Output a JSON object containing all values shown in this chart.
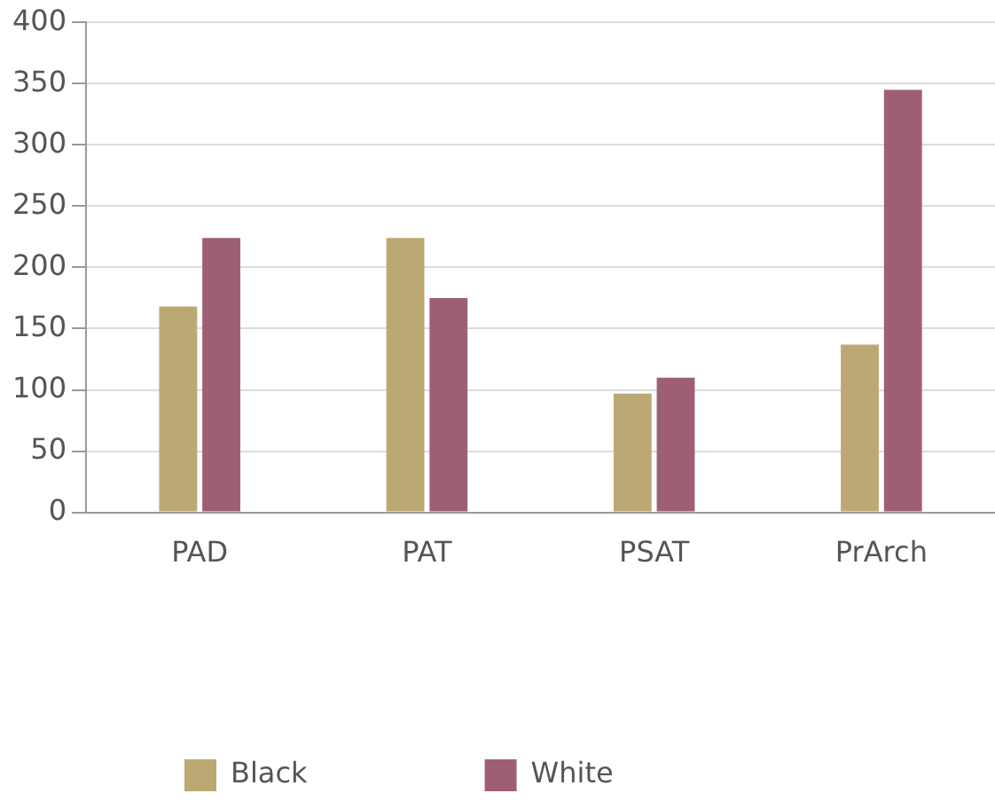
{
  "chart_data": {
    "type": "bar",
    "categories": [
      "PAD",
      "PAT",
      "PSAT",
      "PrArch"
    ],
    "series": [
      {
        "name": "Black",
        "color": "#bca873",
        "values": [
          168,
          224,
          97,
          137
        ]
      },
      {
        "name": "White",
        "color": "#9e5f74",
        "values": [
          224,
          175,
          110,
          345
        ]
      }
    ],
    "ylim": [
      0,
      400
    ],
    "yticks": [
      0,
      50,
      100,
      150,
      200,
      250,
      300,
      350,
      400
    ],
    "grid": "y",
    "legend": "bottom"
  }
}
